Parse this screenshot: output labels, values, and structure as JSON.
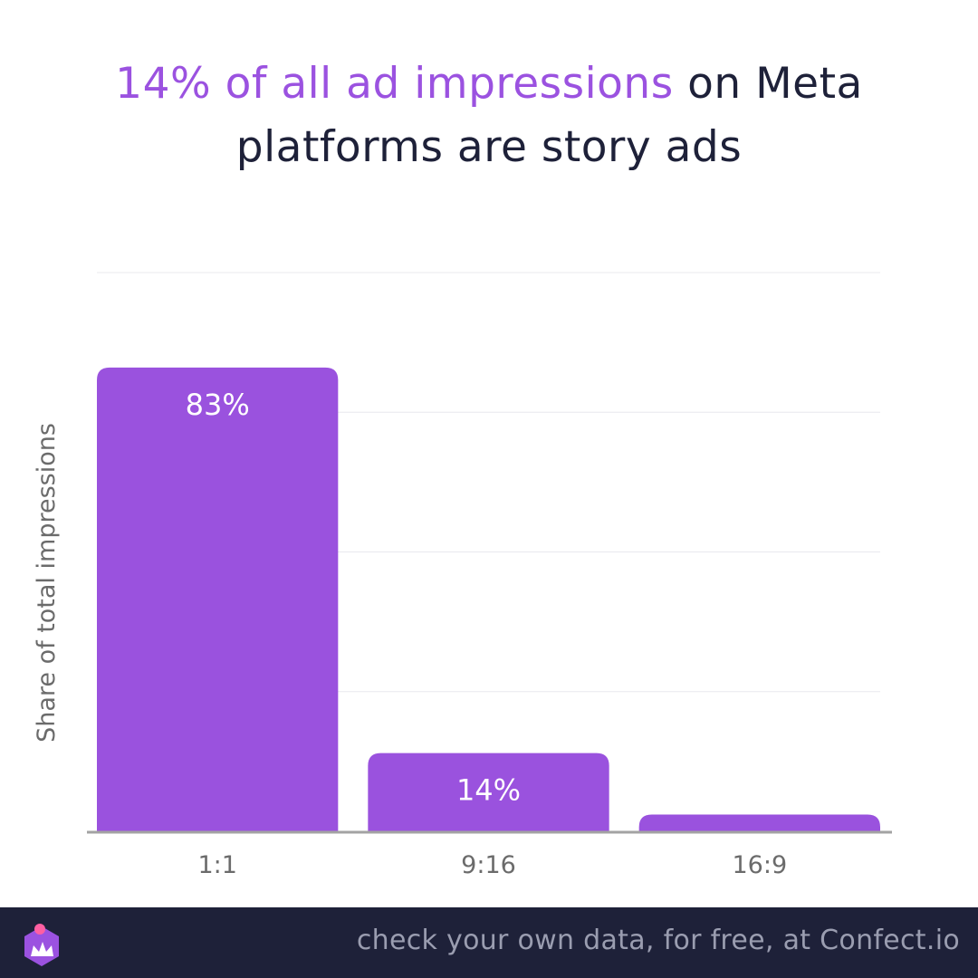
{
  "title": {
    "highlight": "14% of all ad impressions",
    "rest": " on Meta",
    "line2": "platforms are story ads"
  },
  "colors": {
    "accent": "#9b52e0",
    "bar": "#9a52de",
    "text_dark": "#1e2139",
    "axis_text": "#6b6b6b",
    "footer_bg": "#1e2139",
    "footer_text": "#9a9db0"
  },
  "chart_data": {
    "type": "bar",
    "categories": [
      "1:1",
      "9:16",
      "16:9"
    ],
    "values": [
      83,
      14,
      3
    ],
    "data_labels": [
      "83%",
      "14%",
      ""
    ],
    "ylabel": "Share of total impressions",
    "xlabel": "",
    "ylim": [
      0,
      100
    ],
    "grid": true
  },
  "footer": {
    "text": "check your own data, for free, at Confect.io",
    "logo_icon": "confect-logo-icon"
  }
}
